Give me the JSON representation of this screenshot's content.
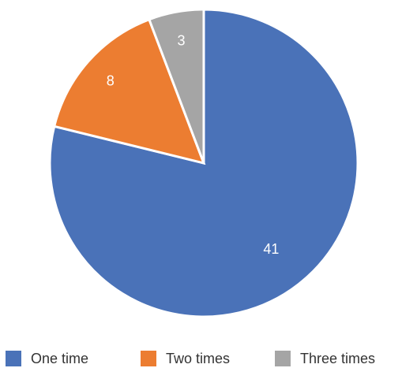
{
  "chart_data": {
    "type": "pie",
    "title": "",
    "categories": [
      "One time",
      "Two times",
      "Three times"
    ],
    "values": [
      41,
      8,
      3
    ],
    "colors": [
      "#4a72b8",
      "#ec7d31",
      "#a5a5a5"
    ],
    "data_labels": [
      "41",
      "8",
      "3"
    ],
    "start_angle": "12 o'clock",
    "direction": "clockwise",
    "legend_position": "bottom"
  }
}
